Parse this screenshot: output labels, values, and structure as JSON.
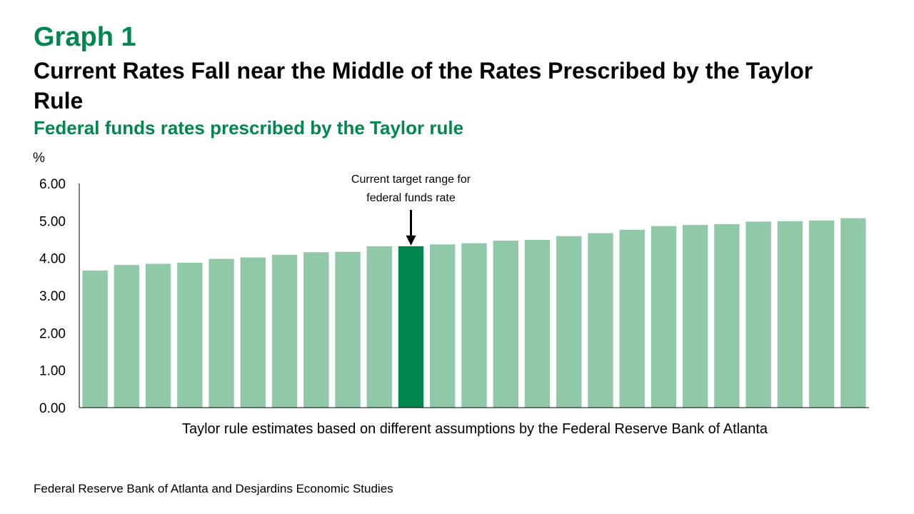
{
  "header": {
    "graph_label": "Graph 1",
    "title": "Current Rates Fall near the Middle of the Rates Prescribed by the Taylor Rule",
    "subtitle": "Federal funds rates prescribed by the Taylor rule"
  },
  "footer": {
    "source": "Federal Reserve Bank of Atlanta and Desjardins Economic Studies"
  },
  "colors": {
    "accent": "#00874E",
    "bar": "#8FC9A8",
    "highlight_bar": "#00874E",
    "axis": "#000000"
  },
  "chart_data": {
    "type": "bar",
    "title": "Federal funds rates prescribed by the Taylor rule",
    "ylabel": "%",
    "xlabel": "Taylor rule estimates based on different assumptions by the Federal Reserve Bank of Atlanta",
    "ylim": [
      0,
      6
    ],
    "yticks": [
      "0.00",
      "1.00",
      "2.00",
      "3.00",
      "4.00",
      "5.00",
      "6.00"
    ],
    "grid": false,
    "values": [
      3.67,
      3.82,
      3.85,
      3.88,
      3.98,
      4.02,
      4.09,
      4.16,
      4.17,
      4.32,
      4.32,
      4.37,
      4.4,
      4.47,
      4.49,
      4.59,
      4.67,
      4.76,
      4.86,
      4.89,
      4.91,
      4.98,
      4.99,
      5.01,
      5.07
    ],
    "highlight_index": 10,
    "annotation": {
      "text_line1": "Current target range for",
      "text_line2": "federal funds rate",
      "target_index": 10
    }
  }
}
